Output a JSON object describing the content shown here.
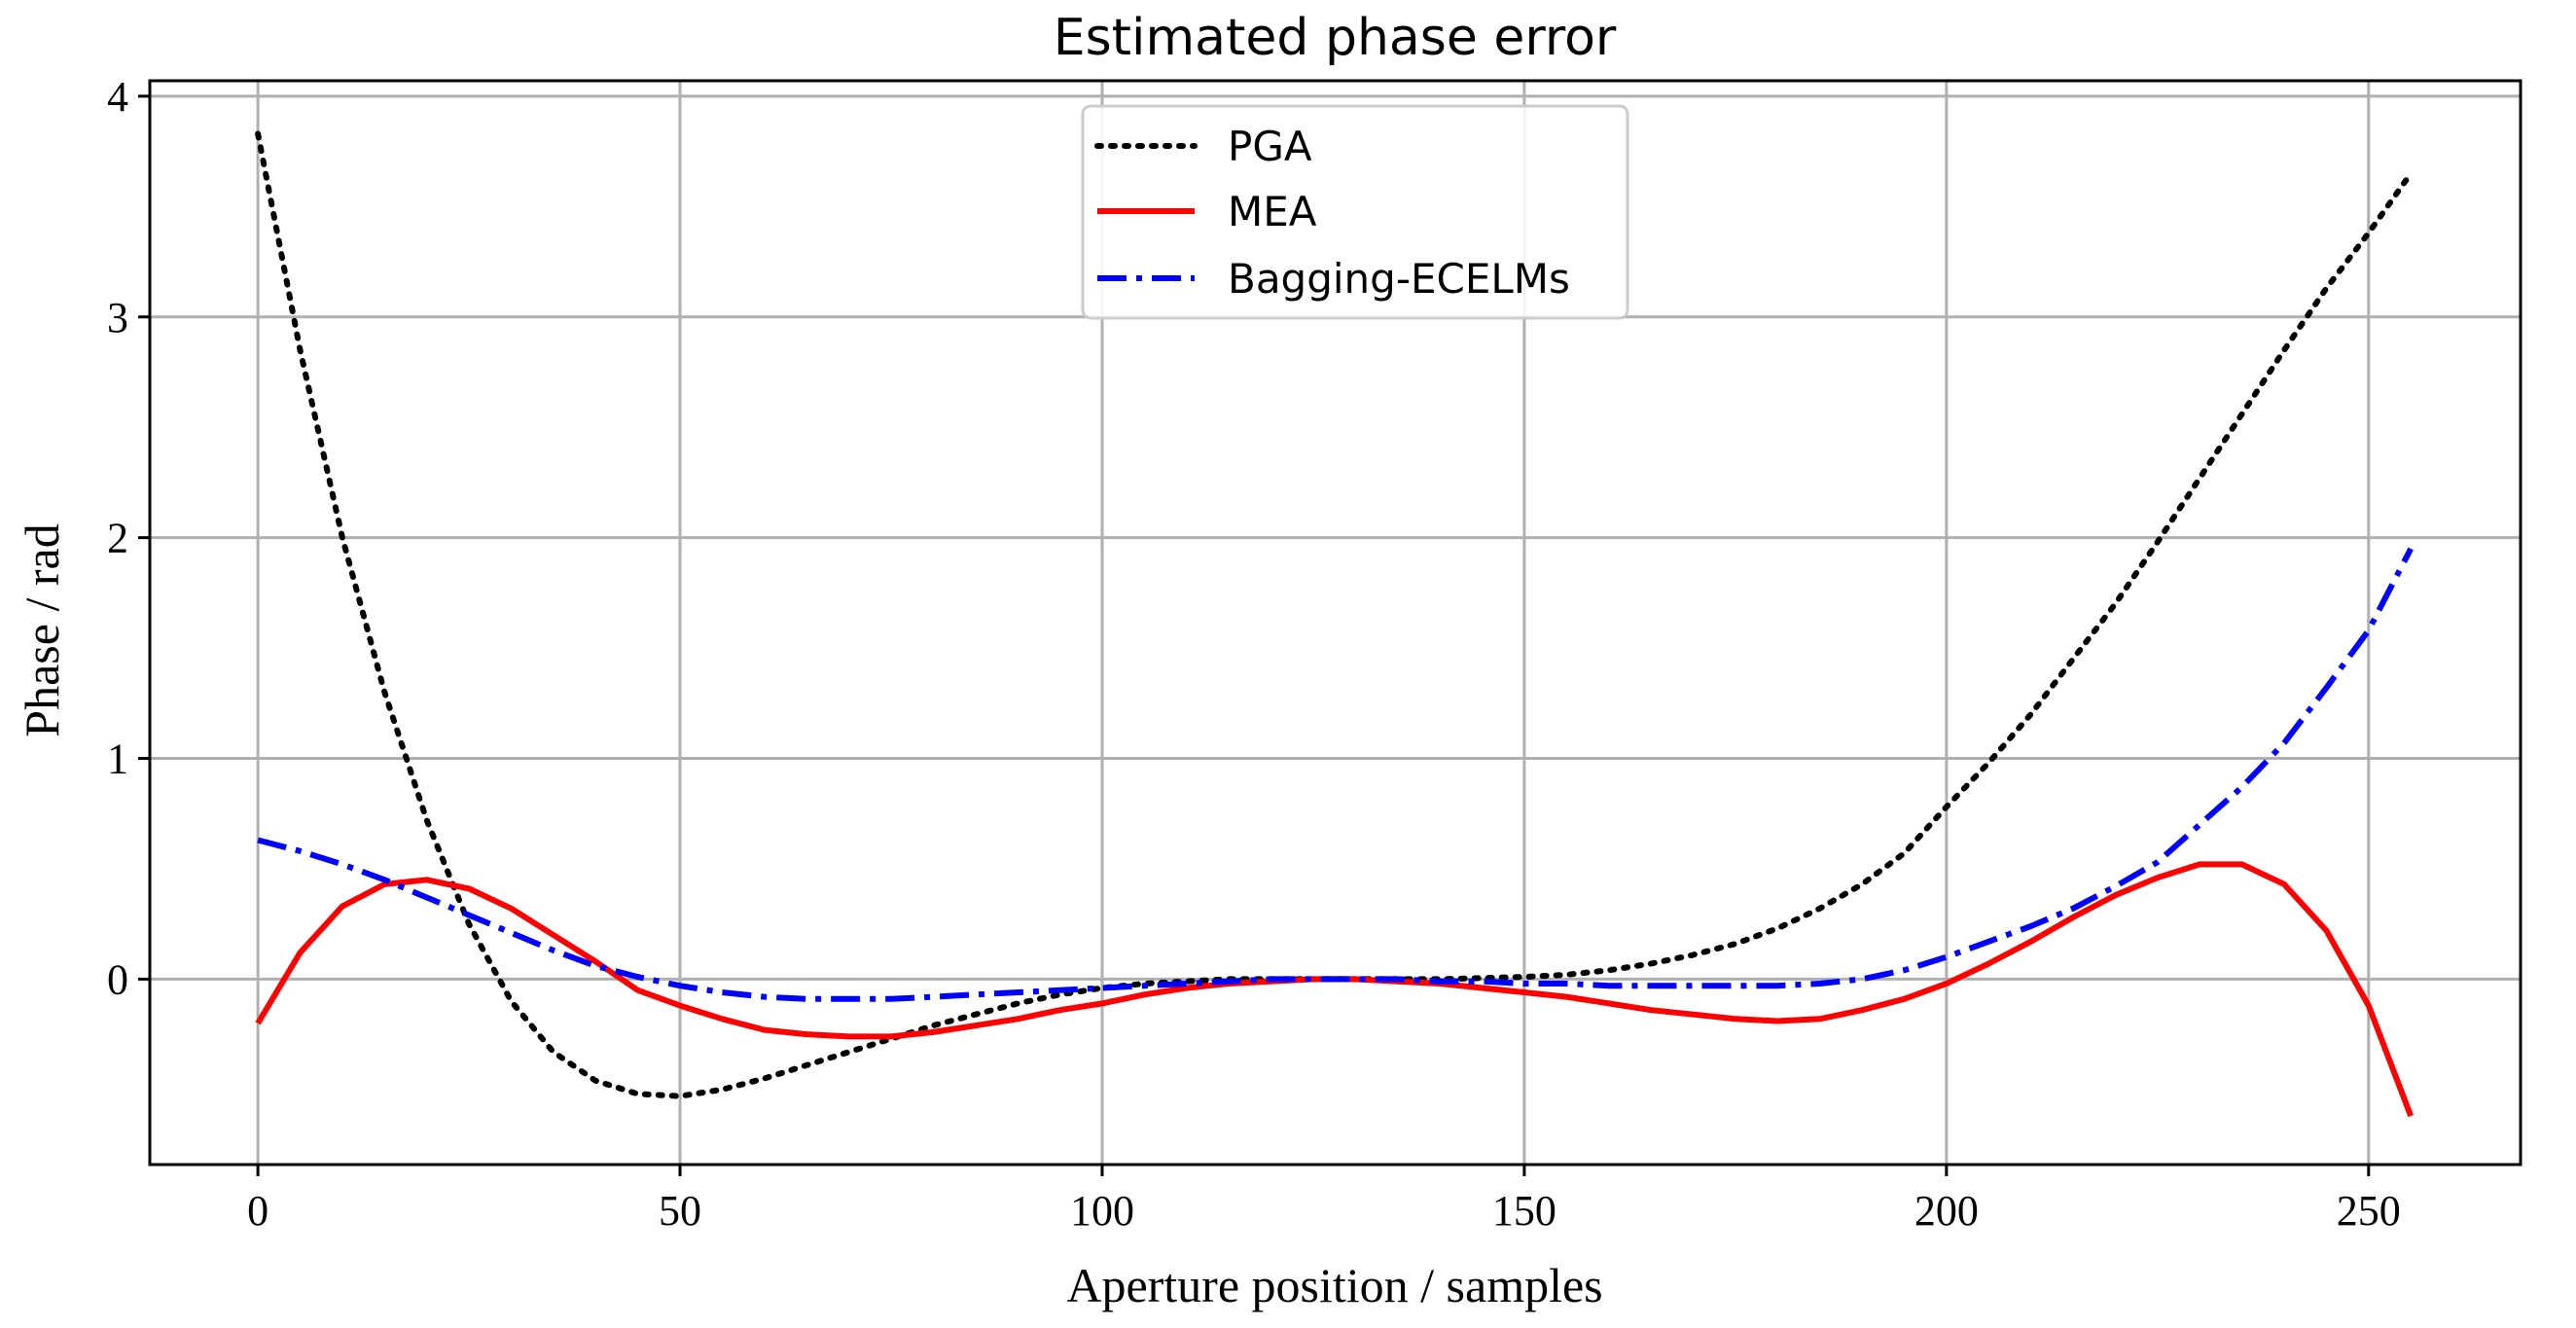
{
  "chart_data": {
    "type": "line",
    "title": "Estimated phase error",
    "xlabel": "Aperture position / samples",
    "ylabel": "Phase / rad",
    "xlim": [
      -12.8,
      268
    ],
    "ylim": [
      -0.84,
      4.07
    ],
    "xticks": [
      0,
      50,
      100,
      150,
      200,
      250
    ],
    "xtick_labels": [
      "0",
      "50",
      "100",
      "150",
      "200",
      "250"
    ],
    "yticks": [
      0,
      1,
      2,
      3,
      4
    ],
    "ytick_labels": [
      "0",
      "1",
      "2",
      "3",
      "4"
    ],
    "grid": true,
    "legend_position": "upper-center",
    "x": [
      0,
      5,
      10,
      15,
      20,
      25,
      30,
      35,
      40,
      45,
      50,
      55,
      60,
      65,
      70,
      75,
      80,
      85,
      90,
      95,
      100,
      105,
      110,
      115,
      120,
      125,
      130,
      135,
      140,
      145,
      150,
      155,
      160,
      165,
      170,
      175,
      180,
      185,
      190,
      195,
      200,
      205,
      210,
      215,
      220,
      225,
      230,
      235,
      240,
      245,
      250,
      255
    ],
    "series": [
      {
        "name": "PGA",
        "color": "#000000",
        "style": "dotted",
        "values": [
          3.83,
          2.85,
          2.0,
          1.3,
          0.72,
          0.25,
          -0.1,
          -0.33,
          -0.46,
          -0.52,
          -0.53,
          -0.5,
          -0.45,
          -0.39,
          -0.33,
          -0.27,
          -0.21,
          -0.16,
          -0.11,
          -0.07,
          -0.04,
          -0.02,
          -0.01,
          0.0,
          0.0,
          0.0,
          0.0,
          0.0,
          0.0,
          0.005,
          0.01,
          0.02,
          0.04,
          0.07,
          0.11,
          0.16,
          0.23,
          0.32,
          0.43,
          0.57,
          0.78,
          0.98,
          1.2,
          1.45,
          1.7,
          1.98,
          2.27,
          2.56,
          2.85,
          3.13,
          3.38,
          3.65
        ]
      },
      {
        "name": "MEA",
        "color": "#ff0000",
        "style": "solid",
        "values": [
          -0.2,
          0.12,
          0.33,
          0.43,
          0.45,
          0.41,
          0.32,
          0.2,
          0.08,
          -0.05,
          -0.12,
          -0.18,
          -0.23,
          -0.25,
          -0.26,
          -0.26,
          -0.24,
          -0.21,
          -0.18,
          -0.14,
          -0.11,
          -0.07,
          -0.04,
          -0.02,
          -0.01,
          0.0,
          0.0,
          -0.01,
          -0.02,
          -0.04,
          -0.06,
          -0.08,
          -0.11,
          -0.14,
          -0.16,
          -0.18,
          -0.19,
          -0.18,
          -0.14,
          -0.09,
          -0.02,
          0.07,
          0.17,
          0.28,
          0.38,
          0.46,
          0.52,
          0.52,
          0.43,
          0.22,
          -0.12,
          -0.62
        ]
      },
      {
        "name": "Bagging-ECELMs",
        "color": "#0000ff",
        "style": "dashdot",
        "values": [
          0.63,
          0.58,
          0.52,
          0.45,
          0.37,
          0.29,
          0.21,
          0.13,
          0.06,
          0.01,
          -0.03,
          -0.06,
          -0.08,
          -0.09,
          -0.09,
          -0.09,
          -0.08,
          -0.07,
          -0.06,
          -0.05,
          -0.04,
          -0.03,
          -0.02,
          -0.01,
          0.0,
          0.0,
          0.0,
          0.0,
          -0.01,
          -0.01,
          -0.02,
          -0.02,
          -0.03,
          -0.03,
          -0.03,
          -0.03,
          -0.03,
          -0.02,
          0.0,
          0.04,
          0.1,
          0.17,
          0.24,
          0.32,
          0.42,
          0.53,
          0.7,
          0.87,
          1.07,
          1.32,
          1.58,
          1.95
        ]
      }
    ]
  }
}
